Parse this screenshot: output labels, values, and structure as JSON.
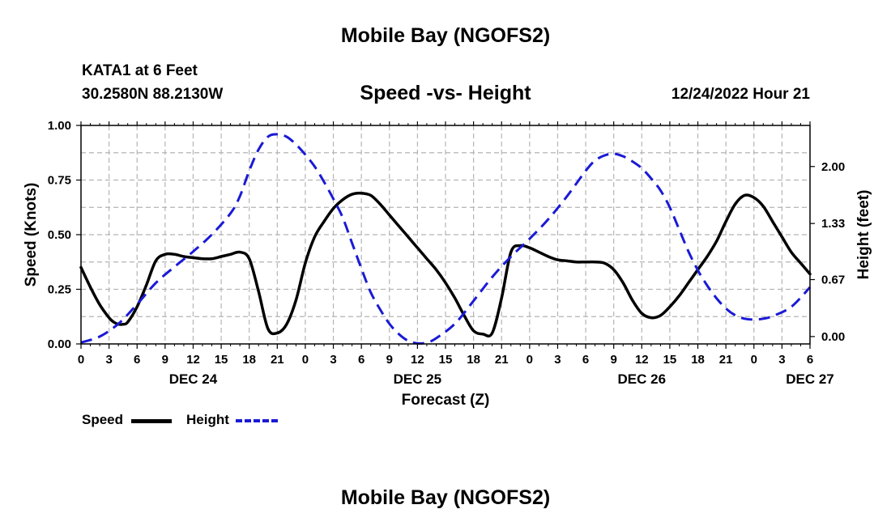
{
  "header": {
    "title": "Mobile Bay (NGOFS2)",
    "station": "KATA1 at 6 Feet",
    "coords": "30.2580N  88.2130W",
    "subtitle": "Speed -vs- Height",
    "datetime": "12/24/2022 Hour 21"
  },
  "footer": {
    "title": "Mobile Bay (NGOFS2)"
  },
  "legend": {
    "speed": "Speed",
    "height": "Height"
  },
  "colors": {
    "speed": "#000000",
    "height": "#1a1ad6",
    "grid": "#b4b4b4"
  },
  "chart_data": {
    "type": "line",
    "title": "Speed -vs- Height",
    "xlabel": "Forecast (Z)",
    "ylabel": "Speed (Knots)",
    "y2label": "Height (feet)",
    "xlim": [
      0,
      78
    ],
    "ylim": [
      0,
      1
    ],
    "y2lim": [
      -0.0867,
      2.4833
    ],
    "x_tick_labels": [
      "0",
      "3",
      "6",
      "9",
      "12",
      "15",
      "18",
      "21",
      "0",
      "3",
      "6",
      "9",
      "12",
      "15",
      "18",
      "21",
      "0",
      "3",
      "6",
      "9",
      "12",
      "15",
      "18",
      "21",
      "0",
      "3",
      "6"
    ],
    "y_ticks": [
      0,
      0.25,
      0.5,
      0.75,
      1.0
    ],
    "y_tick_labels": [
      "0.00",
      "0.25",
      "0.50",
      "0.75",
      "1.00"
    ],
    "y2_ticks": [
      0,
      0.67,
      1.33,
      2.0
    ],
    "y2_tick_labels": [
      "0.00",
      "0.67",
      "1.33",
      "2.00"
    ],
    "day_labels": [
      {
        "x": 12,
        "label": "DEC 24"
      },
      {
        "x": 36,
        "label": "DEC 25"
      },
      {
        "x": 60,
        "label": "DEC 26"
      },
      {
        "x": 78,
        "label": "DEC 27"
      }
    ],
    "grid": true,
    "series": [
      {
        "name": "Speed",
        "axis": "left",
        "x": [
          0,
          1,
          2,
          3,
          3.5,
          4,
          4.5,
          5,
          6,
          7,
          8,
          9,
          10,
          11,
          12,
          13,
          14,
          15,
          16,
          17,
          18,
          19,
          20,
          21,
          22,
          23,
          24,
          25,
          26,
          27,
          28,
          29,
          30,
          31,
          32,
          33,
          34,
          35,
          36,
          37,
          38,
          39,
          40,
          41,
          42,
          43,
          44,
          45,
          46,
          47,
          48,
          49,
          50,
          51,
          52,
          53,
          54,
          55,
          56,
          57,
          58,
          59,
          60,
          61,
          62,
          63,
          64,
          65,
          66,
          67,
          68,
          69,
          70,
          71,
          72,
          73,
          74,
          75,
          76,
          77,
          78
        ],
        "values": [
          0.35,
          0.26,
          0.18,
          0.12,
          0.1,
          0.09,
          0.09,
          0.1,
          0.17,
          0.27,
          0.38,
          0.41,
          0.41,
          0.4,
          0.395,
          0.39,
          0.39,
          0.4,
          0.41,
          0.42,
          0.39,
          0.24,
          0.07,
          0.05,
          0.09,
          0.2,
          0.37,
          0.49,
          0.56,
          0.62,
          0.66,
          0.685,
          0.69,
          0.68,
          0.64,
          0.59,
          0.54,
          0.49,
          0.44,
          0.39,
          0.34,
          0.28,
          0.21,
          0.13,
          0.06,
          0.045,
          0.05,
          0.21,
          0.42,
          0.45,
          0.44,
          0.42,
          0.4,
          0.385,
          0.38,
          0.375,
          0.375,
          0.375,
          0.37,
          0.34,
          0.28,
          0.2,
          0.14,
          0.12,
          0.13,
          0.17,
          0.22,
          0.28,
          0.34,
          0.4,
          0.47,
          0.56,
          0.64,
          0.68,
          0.67,
          0.63,
          0.56,
          0.49,
          0.42,
          0.37,
          0.32
        ]
      },
      {
        "name": "Height",
        "axis": "right",
        "x": [
          0,
          2,
          4,
          6,
          8,
          10,
          12,
          14,
          16,
          17,
          18,
          19,
          20,
          21,
          22,
          23,
          24,
          25,
          26,
          27,
          28,
          29,
          30,
          31,
          32,
          33,
          34,
          35,
          36,
          37,
          38,
          40,
          42,
          44,
          46,
          48,
          50,
          52,
          54,
          55,
          56,
          57,
          58,
          59,
          60,
          61,
          62,
          63,
          64,
          65,
          66,
          67,
          68,
          69,
          70,
          71,
          72,
          73,
          74,
          76,
          78
        ],
        "values": [
          -0.07,
          0.0,
          0.15,
          0.38,
          0.63,
          0.82,
          1.0,
          1.2,
          1.45,
          1.65,
          1.95,
          2.2,
          2.35,
          2.38,
          2.35,
          2.26,
          2.14,
          2.0,
          1.82,
          1.62,
          1.4,
          1.1,
          0.8,
          0.52,
          0.32,
          0.15,
          0.03,
          -0.05,
          -0.08,
          -0.07,
          -0.02,
          0.15,
          0.42,
          0.7,
          0.94,
          1.15,
          1.38,
          1.65,
          1.95,
          2.07,
          2.13,
          2.15,
          2.12,
          2.06,
          1.98,
          1.86,
          1.72,
          1.52,
          1.26,
          1.0,
          0.78,
          0.6,
          0.45,
          0.33,
          0.25,
          0.21,
          0.2,
          0.21,
          0.24,
          0.35,
          0.58
        ]
      }
    ]
  }
}
